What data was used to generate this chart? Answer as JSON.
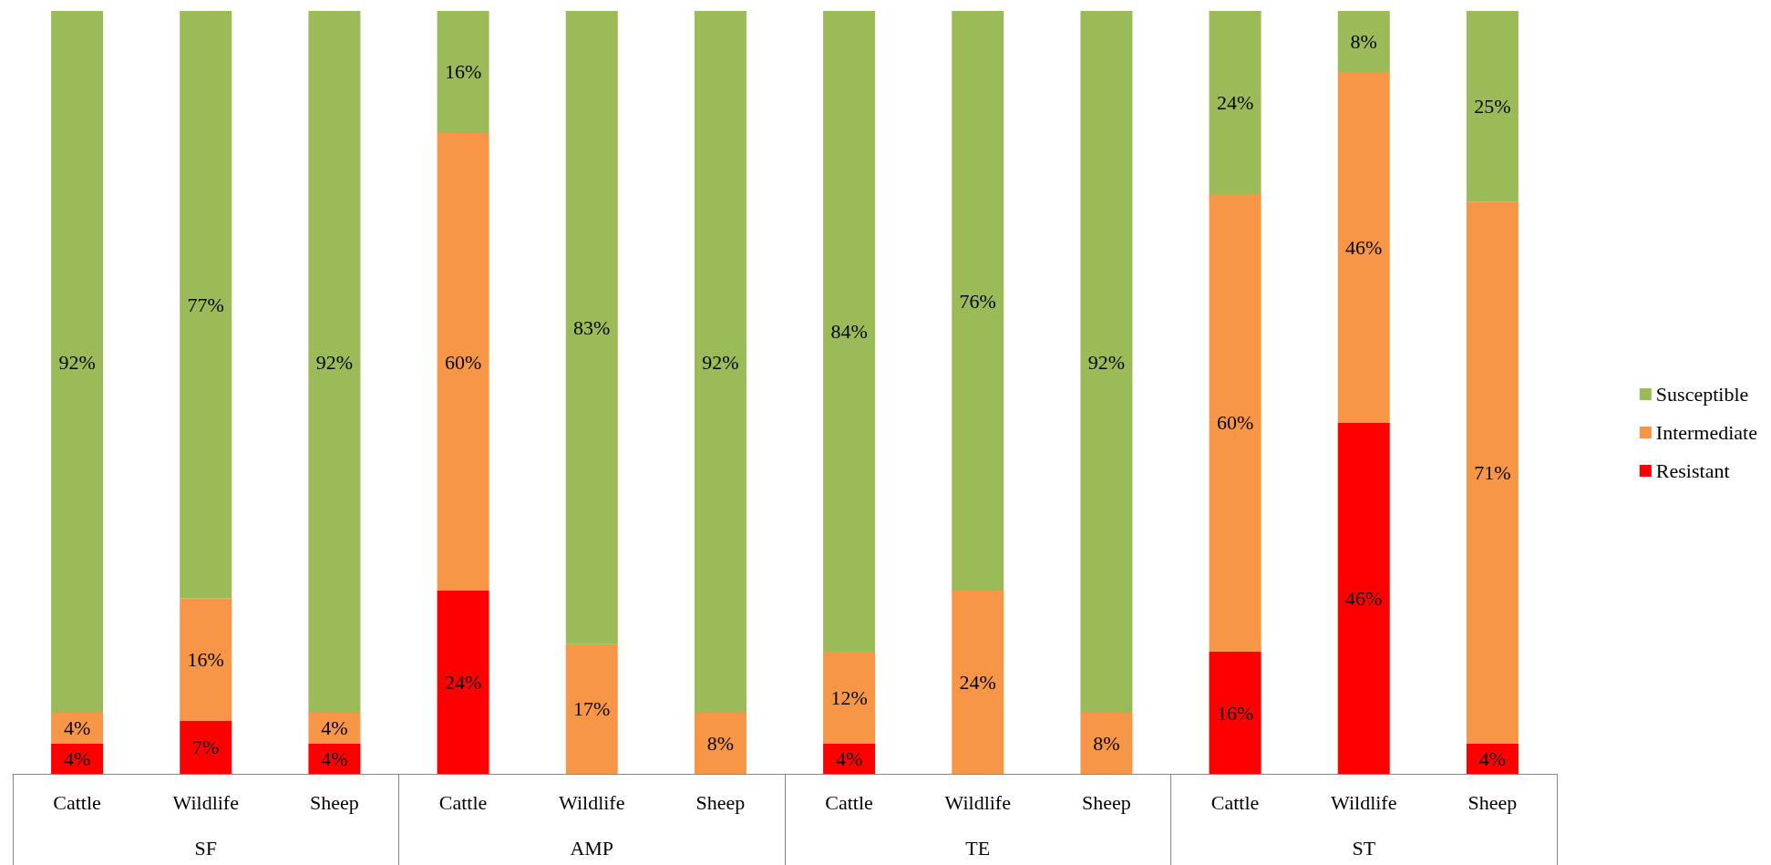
{
  "chart_data": {
    "type": "bar",
    "stacked": true,
    "categories": [
      "Cattle",
      "Wildlife",
      "Sheep",
      "Cattle",
      "Wildlife",
      "Sheep",
      "Cattle",
      "Wildlife",
      "Sheep",
      "Cattle",
      "Wildlife",
      "Sheep"
    ],
    "annotations": [
      "SF",
      "AMP",
      "TE",
      "ST"
    ],
    "ylim": [
      0,
      100
    ],
    "tick_labels": "x",
    "grid": false,
    "legend": "right",
    "series": [
      {
        "name": "Resistant",
        "color": "#ff0000",
        "values": [
          4,
          7,
          4,
          24,
          null,
          null,
          4,
          null,
          null,
          16,
          46,
          4
        ],
        "value_labels": [
          "4%",
          "7%",
          "4%",
          "24%",
          null,
          null,
          "4%",
          null,
          null,
          "16%",
          "46%",
          "4%"
        ]
      },
      {
        "name": "Intermediate",
        "color": "#f79646",
        "values": [
          4,
          16,
          4,
          60,
          17,
          8,
          12,
          24,
          8,
          60,
          46,
          71
        ],
        "value_labels": [
          "4%",
          "16%",
          "4%",
          "60%",
          "17%",
          "8%",
          "12%",
          "24%",
          "8%",
          "60%",
          "46%",
          "71%"
        ]
      },
      {
        "name": "Susceptible",
        "color": "#9bbb59",
        "values": [
          92,
          77,
          92,
          16,
          83,
          92,
          84,
          76,
          92,
          24,
          8,
          25
        ],
        "value_labels": [
          "92%",
          "77%",
          "92%",
          "16%",
          "83%",
          "92%",
          "84%",
          "76%",
          "92%",
          "24%",
          "8%",
          "25%"
        ]
      }
    ]
  }
}
